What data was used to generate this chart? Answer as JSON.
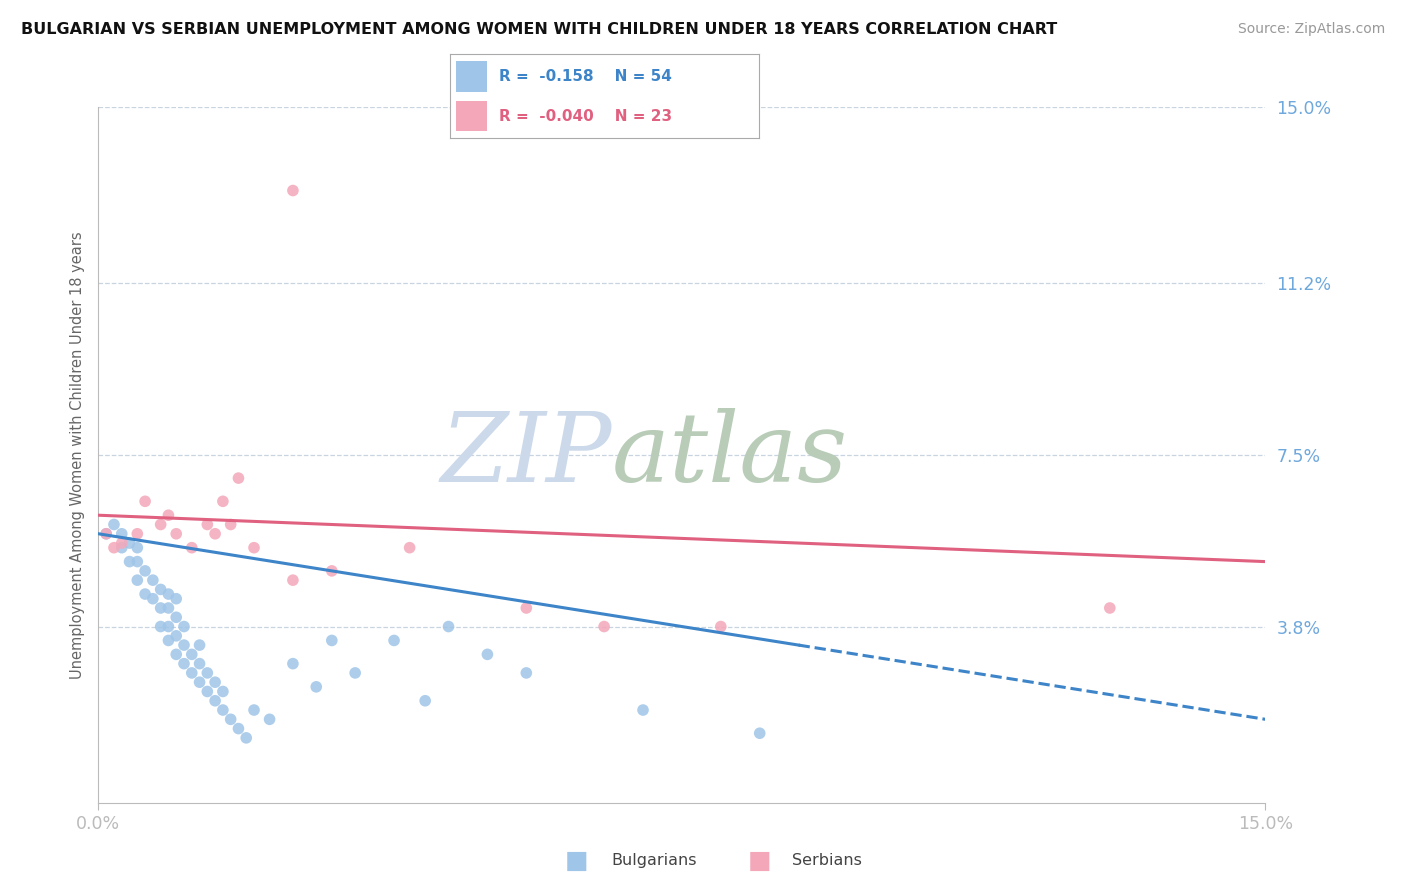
{
  "title": "BULGARIAN VS SERBIAN UNEMPLOYMENT AMONG WOMEN WITH CHILDREN UNDER 18 YEARS CORRELATION CHART",
  "source": "Source: ZipAtlas.com",
  "ylabel": "Unemployment Among Women with Children Under 18 years",
  "xmin": 0.0,
  "xmax": 0.15,
  "ymin": 0.0,
  "ymax": 0.15,
  "yticks": [
    0.15,
    0.112,
    0.075,
    0.038
  ],
  "ytick_labels": [
    "15.0%",
    "11.2%",
    "7.5%",
    "3.8%"
  ],
  "xticks": [
    0.0,
    0.15
  ],
  "xtick_labels": [
    "0.0%",
    "15.0%"
  ],
  "bulgarian_color": "#9fc5e8",
  "serbian_color": "#f4a7b9",
  "trend_bulgarian_color": "#3d85c8",
  "trend_serbian_color": "#e06080",
  "label_color": "#6fa8dc",
  "background_color": "#ffffff",
  "grid_color": "#c8d4e0",
  "watermark_zip_color": "#ccd9ea",
  "watermark_atlas_color": "#b8ccb8",
  "bulgarians_x": [
    0.001,
    0.002,
    0.003,
    0.003,
    0.004,
    0.004,
    0.005,
    0.005,
    0.005,
    0.006,
    0.006,
    0.007,
    0.007,
    0.008,
    0.008,
    0.008,
    0.009,
    0.009,
    0.009,
    0.009,
    0.01,
    0.01,
    0.01,
    0.01,
    0.011,
    0.011,
    0.011,
    0.012,
    0.012,
    0.013,
    0.013,
    0.013,
    0.014,
    0.014,
    0.015,
    0.015,
    0.016,
    0.016,
    0.017,
    0.018,
    0.019,
    0.02,
    0.022,
    0.025,
    0.028,
    0.03,
    0.033,
    0.038,
    0.042,
    0.045,
    0.05,
    0.055,
    0.07,
    0.085
  ],
  "bulgarians_y": [
    0.058,
    0.06,
    0.055,
    0.058,
    0.052,
    0.056,
    0.048,
    0.052,
    0.055,
    0.045,
    0.05,
    0.044,
    0.048,
    0.038,
    0.042,
    0.046,
    0.035,
    0.038,
    0.042,
    0.045,
    0.032,
    0.036,
    0.04,
    0.044,
    0.03,
    0.034,
    0.038,
    0.028,
    0.032,
    0.026,
    0.03,
    0.034,
    0.024,
    0.028,
    0.022,
    0.026,
    0.02,
    0.024,
    0.018,
    0.016,
    0.014,
    0.02,
    0.018,
    0.03,
    0.025,
    0.035,
    0.028,
    0.035,
    0.022,
    0.038,
    0.032,
    0.028,
    0.02,
    0.015
  ],
  "serbians_x": [
    0.001,
    0.002,
    0.025,
    0.003,
    0.005,
    0.006,
    0.008,
    0.009,
    0.01,
    0.012,
    0.014,
    0.015,
    0.016,
    0.017,
    0.018,
    0.02,
    0.025,
    0.03,
    0.04,
    0.055,
    0.065,
    0.08,
    0.13
  ],
  "serbians_y": [
    0.058,
    0.055,
    0.132,
    0.056,
    0.058,
    0.065,
    0.06,
    0.062,
    0.058,
    0.055,
    0.06,
    0.058,
    0.065,
    0.06,
    0.07,
    0.055,
    0.048,
    0.05,
    0.055,
    0.042,
    0.038,
    0.038,
    0.042
  ],
  "trend_b_x0": 0.0,
  "trend_b_y0": 0.058,
  "trend_b_x1": 0.15,
  "trend_b_y1": 0.018,
  "trend_b_solid_end": 0.09,
  "trend_s_x0": 0.0,
  "trend_s_y0": 0.062,
  "trend_s_x1": 0.15,
  "trend_s_y1": 0.052
}
